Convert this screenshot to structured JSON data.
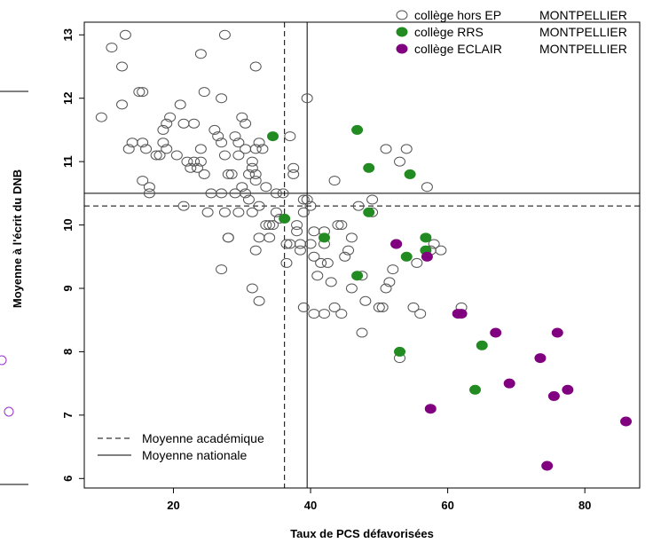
{
  "chart_data": {
    "type": "scatter",
    "xlabel": "Taux de PCS défavorisées",
    "ylabel": "Moyenne à l'écrit du DNB",
    "xlim": [
      7,
      88
    ],
    "ylim": [
      5.85,
      13.2
    ],
    "x_ticks": [
      20,
      40,
      60,
      80
    ],
    "y_ticks": [
      6,
      7,
      8,
      9,
      10,
      11,
      12,
      13
    ],
    "legend_top": [
      {
        "label": "collège hors EP",
        "place": "MONTPELLIER",
        "marker": "open-circle",
        "color": "#555555"
      },
      {
        "label": "collège RRS",
        "place": "MONTPELLIER",
        "marker": "filled-circle",
        "color": "#228B22"
      },
      {
        "label": "collège ECLAIR",
        "place": "MONTPELLIER",
        "marker": "filled-circle",
        "color": "#800080"
      }
    ],
    "legend_bottom": [
      {
        "label": "Moyenne académique",
        "style": "dashed"
      },
      {
        "label": "Moyenne nationale",
        "style": "solid"
      }
    ],
    "reference_lines": {
      "academic_x": 36.2,
      "national_x": 39.5,
      "academic_y": 10.3,
      "national_y": 10.5
    },
    "series": [
      {
        "name": "collège hors EP",
        "color": "#555555",
        "points": [
          [
            9.5,
            11.7
          ],
          [
            11,
            12.8
          ],
          [
            12.5,
            12.5
          ],
          [
            13,
            13.0
          ],
          [
            12.5,
            11.9
          ],
          [
            13.5,
            11.2
          ],
          [
            14,
            11.3
          ],
          [
            15,
            12.1
          ],
          [
            15.5,
            12.1
          ],
          [
            15.5,
            11.3
          ],
          [
            16,
            11.2
          ],
          [
            15.5,
            10.7
          ],
          [
            16.5,
            10.6
          ],
          [
            16.5,
            10.5
          ],
          [
            17.5,
            11.1
          ],
          [
            18,
            11.1
          ],
          [
            18.5,
            11.5
          ],
          [
            18.5,
            11.3
          ],
          [
            19,
            11.2
          ],
          [
            19,
            11.6
          ],
          [
            19.5,
            11.7
          ],
          [
            20.5,
            11.1
          ],
          [
            21,
            11.9
          ],
          [
            21.5,
            11.6
          ],
          [
            21.5,
            10.3
          ],
          [
            22,
            11.0
          ],
          [
            23,
            11.0
          ],
          [
            23,
            11.6
          ],
          [
            23.5,
            10.9
          ],
          [
            24,
            11.2
          ],
          [
            24,
            11.0
          ],
          [
            24.5,
            10.8
          ],
          [
            24,
            12.7
          ],
          [
            24.5,
            12.1
          ],
          [
            25,
            10.2
          ],
          [
            25.5,
            10.5
          ],
          [
            26,
            11.5
          ],
          [
            26.5,
            11.4
          ],
          [
            27,
            11.3
          ],
          [
            27,
            12.0
          ],
          [
            27.5,
            11.1
          ],
          [
            27,
            10.5
          ],
          [
            27.5,
            10.2
          ],
          [
            28,
            10.8
          ],
          [
            28.5,
            10.8
          ],
          [
            28,
            9.8
          ],
          [
            28,
            9.8
          ],
          [
            29,
            11.4
          ],
          [
            29.5,
            11.3
          ],
          [
            29.5,
            11.1
          ],
          [
            29,
            10.5
          ],
          [
            29.5,
            10.2
          ],
          [
            30,
            11.7
          ],
          [
            30.5,
            11.6
          ],
          [
            30.5,
            11.2
          ],
          [
            30,
            10.6
          ],
          [
            30.5,
            10.5
          ],
          [
            31,
            10.4
          ],
          [
            31,
            10.8
          ],
          [
            31.5,
            11.0
          ],
          [
            31.5,
            10.9
          ],
          [
            32,
            10.8
          ],
          [
            32,
            10.7
          ],
          [
            32.5,
            10.3
          ],
          [
            32.5,
            9.8
          ],
          [
            32,
            9.6
          ],
          [
            31.5,
            9.0
          ],
          [
            32.5,
            8.8
          ],
          [
            32,
            12.5
          ],
          [
            27.5,
            13.0
          ],
          [
            32.5,
            11.3
          ],
          [
            33,
            11.2
          ],
          [
            33.5,
            10.6
          ],
          [
            33.5,
            10.0
          ],
          [
            34,
            10.0
          ],
          [
            34.5,
            10.0
          ],
          [
            35,
            10.2
          ],
          [
            35,
            10.5
          ],
          [
            35.5,
            10.1
          ],
          [
            36,
            10.5
          ],
          [
            36.5,
            9.7
          ],
          [
            36.5,
            9.4
          ],
          [
            37,
            9.7
          ],
          [
            37,
            11.4
          ],
          [
            37.5,
            10.9
          ],
          [
            37.5,
            10.8
          ],
          [
            38,
            10.0
          ],
          [
            38,
            9.9
          ],
          [
            38.5,
            9.7
          ],
          [
            38.5,
            9.6
          ],
          [
            39,
            10.2
          ],
          [
            39,
            10.4
          ],
          [
            39.5,
            12.0
          ],
          [
            39.5,
            10.4
          ],
          [
            40,
            10.3
          ],
          [
            40,
            9.7
          ],
          [
            40.5,
            9.9
          ],
          [
            40.5,
            9.5
          ],
          [
            41,
            9.2
          ],
          [
            41.5,
            9.4
          ],
          [
            42,
            9.9
          ],
          [
            42,
            9.7
          ],
          [
            42.5,
            9.4
          ],
          [
            43,
            9.1
          ],
          [
            43.5,
            10.7
          ],
          [
            44,
            10.0
          ],
          [
            44.5,
            10.0
          ],
          [
            45,
            9.5
          ],
          [
            45.5,
            9.6
          ],
          [
            46,
            9.8
          ],
          [
            46,
            9.0
          ],
          [
            47,
            10.3
          ],
          [
            47.5,
            9.2
          ],
          [
            48,
            8.8
          ],
          [
            49,
            10.4
          ],
          [
            49,
            10.2
          ],
          [
            50,
            8.7
          ],
          [
            50.5,
            8.7
          ],
          [
            51,
            9.0
          ],
          [
            51.5,
            9.1
          ],
          [
            52,
            9.3
          ],
          [
            52.5,
            9.7
          ],
          [
            51,
            11.2
          ],
          [
            53,
            11.0
          ],
          [
            54,
            11.2
          ],
          [
            55,
            8.7
          ],
          [
            55.5,
            9.4
          ],
          [
            56,
            8.6
          ],
          [
            57,
            10.6
          ],
          [
            57.5,
            9.6
          ],
          [
            58,
            9.7
          ],
          [
            59,
            9.6
          ],
          [
            39,
            8.7
          ],
          [
            40.5,
            8.6
          ],
          [
            42,
            8.6
          ],
          [
            43.5,
            8.7
          ],
          [
            44.5,
            8.6
          ],
          [
            47.5,
            8.3
          ],
          [
            53,
            7.9
          ],
          [
            62,
            8.7
          ],
          [
            31.5,
            10.2
          ],
          [
            32,
            11.2
          ],
          [
            34,
            9.8
          ],
          [
            27,
            9.3
          ],
          [
            22.5,
            10.9
          ]
        ]
      },
      {
        "name": "collège RRS",
        "color": "#228B22",
        "points": [
          [
            34.5,
            11.4
          ],
          [
            36.2,
            10.1
          ],
          [
            46.8,
            11.5
          ],
          [
            48.5,
            10.9
          ],
          [
            54.5,
            10.8
          ],
          [
            48.5,
            10.2
          ],
          [
            42,
            9.8
          ],
          [
            46.8,
            9.2
          ],
          [
            54,
            9.5
          ],
          [
            56.8,
            9.8
          ],
          [
            56.8,
            9.6
          ],
          [
            53,
            8.0
          ],
          [
            65,
            8.1
          ],
          [
            64,
            7.4
          ]
        ]
      },
      {
        "name": "collège ECLAIR",
        "color": "#800080",
        "points": [
          [
            52.5,
            9.7
          ],
          [
            57,
            9.5
          ],
          [
            61.5,
            8.6
          ],
          [
            62,
            8.6
          ],
          [
            67,
            8.3
          ],
          [
            76,
            8.3
          ],
          [
            73.5,
            7.9
          ],
          [
            69,
            7.5
          ],
          [
            57.5,
            7.1
          ],
          [
            77.5,
            7.4
          ],
          [
            75.5,
            7.3
          ],
          [
            74.5,
            6.2
          ],
          [
            86,
            6.9
          ]
        ]
      }
    ]
  }
}
